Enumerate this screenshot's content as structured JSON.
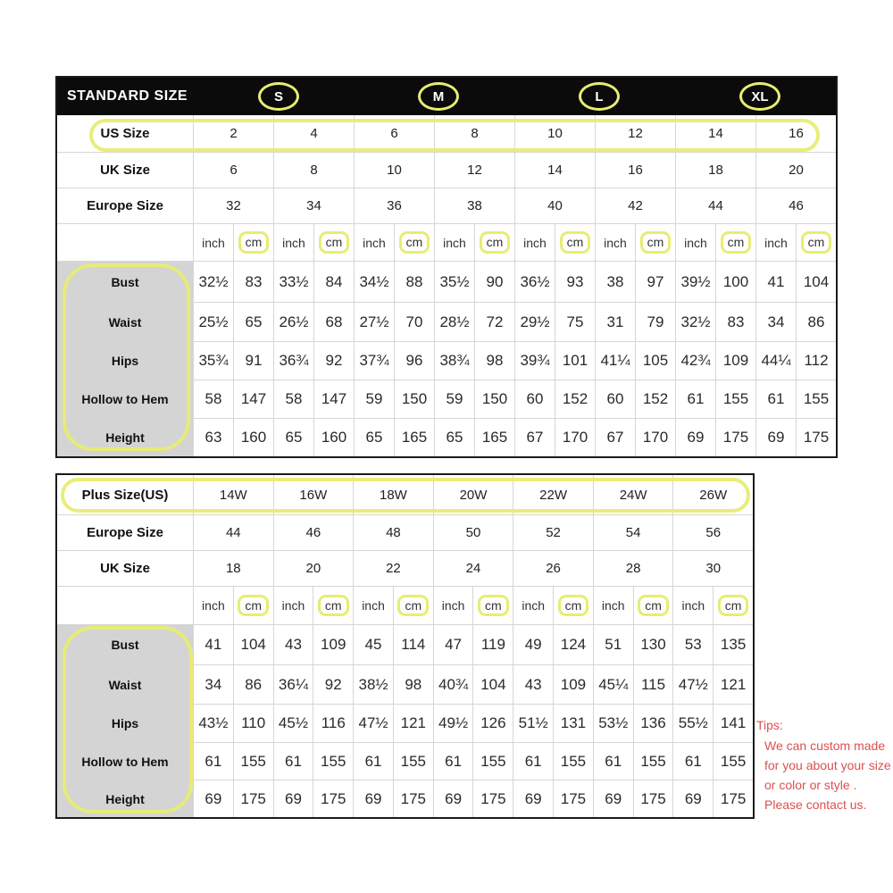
{
  "colors": {
    "highlight_yellow": "#e8ec72",
    "header_black": "#0b0b0b",
    "label_gray": "#d4d4d4",
    "tips_red": "#dd4f4f"
  },
  "standard_table": {
    "title": "STANDARD SIZE",
    "size_labels": [
      "S",
      "M",
      "L",
      "XL"
    ],
    "size_rows": [
      {
        "label": "US Size",
        "values": [
          "2",
          "4",
          "6",
          "8",
          "10",
          "12",
          "14",
          "16"
        ]
      },
      {
        "label": "UK Size",
        "values": [
          "6",
          "8",
          "10",
          "12",
          "14",
          "16",
          "18",
          "20"
        ]
      },
      {
        "label": "Europe Size",
        "values": [
          "32",
          "34",
          "36",
          "38",
          "40",
          "42",
          "44",
          "46"
        ]
      }
    ],
    "unit_row": {
      "units": [
        "inch",
        "cm"
      ],
      "pairs": 8
    },
    "measurement_rows": [
      {
        "label": "Bust",
        "values": [
          "32½",
          "83",
          "33½",
          "84",
          "34½",
          "88",
          "35½",
          "90",
          "36½",
          "93",
          "38",
          "97",
          "39½",
          "100",
          "41",
          "104"
        ]
      },
      {
        "label": "Waist",
        "values": [
          "25½",
          "65",
          "26½",
          "68",
          "27½",
          "70",
          "28½",
          "72",
          "29½",
          "75",
          "31",
          "79",
          "32½",
          "83",
          "34",
          "86"
        ]
      },
      {
        "label": "Hips",
        "values": [
          "35¾",
          "91",
          "36¾",
          "92",
          "37¾",
          "96",
          "38¾",
          "98",
          "39¾",
          "101",
          "41¼",
          "105",
          "42¾",
          "109",
          "44¼",
          "112"
        ]
      },
      {
        "label": "Hollow to Hem",
        "values": [
          "58",
          "147",
          "58",
          "147",
          "59",
          "150",
          "59",
          "150",
          "60",
          "152",
          "60",
          "152",
          "61",
          "155",
          "61",
          "155"
        ]
      },
      {
        "label": "Height",
        "values": [
          "63",
          "160",
          "65",
          "160",
          "65",
          "165",
          "65",
          "165",
          "67",
          "170",
          "67",
          "170",
          "69",
          "175",
          "69",
          "175"
        ]
      }
    ]
  },
  "plus_table": {
    "size_rows": [
      {
        "label": "Plus Size(US)",
        "values": [
          "14W",
          "16W",
          "18W",
          "20W",
          "22W",
          "24W",
          "26W"
        ]
      },
      {
        "label": "Europe Size",
        "values": [
          "44",
          "46",
          "48",
          "50",
          "52",
          "54",
          "56"
        ]
      },
      {
        "label": "UK Size",
        "values": [
          "18",
          "20",
          "22",
          "24",
          "26",
          "28",
          "30"
        ]
      }
    ],
    "unit_row": {
      "units": [
        "inch",
        "cm"
      ],
      "pairs": 7
    },
    "measurement_rows": [
      {
        "label": "Bust",
        "values": [
          "41",
          "104",
          "43",
          "109",
          "45",
          "114",
          "47",
          "119",
          "49",
          "124",
          "51",
          "130",
          "53",
          "135"
        ]
      },
      {
        "label": "Waist",
        "values": [
          "34",
          "86",
          "36¼",
          "92",
          "38½",
          "98",
          "40¾",
          "104",
          "43",
          "109",
          "45¼",
          "115",
          "47½",
          "121"
        ]
      },
      {
        "label": "Hips",
        "values": [
          "43½",
          "110",
          "45½",
          "116",
          "47½",
          "121",
          "49½",
          "126",
          "51½",
          "131",
          "53½",
          "136",
          "55½",
          "141"
        ]
      },
      {
        "label": "Hollow to Hem",
        "values": [
          "61",
          "155",
          "61",
          "155",
          "61",
          "155",
          "61",
          "155",
          "61",
          "155",
          "61",
          "155",
          "61",
          "155"
        ]
      },
      {
        "label": "Height",
        "values": [
          "69",
          "175",
          "69",
          "175",
          "69",
          "175",
          "69",
          "175",
          "69",
          "175",
          "69",
          "175",
          "69",
          "175"
        ]
      }
    ]
  },
  "tips": {
    "title": "Tips:",
    "lines": [
      "We can custom made",
      "for you about your size",
      "or color or style .",
      "Please contact us."
    ]
  }
}
